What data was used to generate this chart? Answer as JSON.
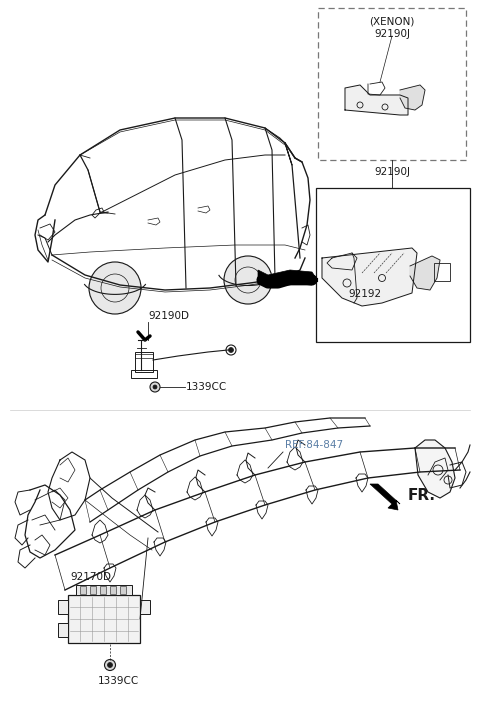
{
  "bg_color": "#ffffff",
  "line_color": "#1a1a1a",
  "ref_color": "#5b7fa6",
  "fig_width": 4.8,
  "fig_height": 7.18,
  "dpi": 100,
  "labels": {
    "xenon_title": "(XENON)",
    "xenon_part": "92190J",
    "part_92190J": "92190J",
    "part_92192": "92192",
    "part_92190D": "92190D",
    "part_1339CC_top": "1339CC",
    "part_ref": "REF.84-847",
    "part_FR": "FR.",
    "part_92170D": "92170D",
    "part_1339CC_bot": "1339CC"
  }
}
